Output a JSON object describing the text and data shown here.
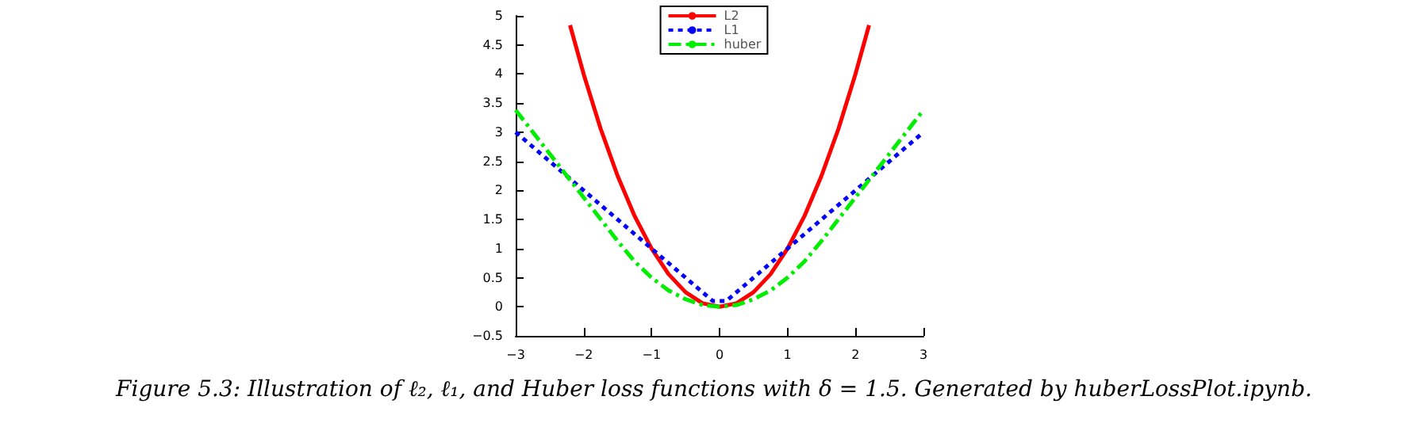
{
  "chart_data": {
    "type": "line",
    "x": [
      -2.2,
      -2,
      -1.75,
      -1.5,
      -1.25,
      -1,
      -0.75,
      -0.5,
      -0.25,
      0,
      0.25,
      0.5,
      0.75,
      1,
      1.25,
      1.5,
      1.75,
      2,
      2.2
    ],
    "series": [
      {
        "name": "L2",
        "color": "#ff0000",
        "line_style": "solid",
        "values": [
          4.84,
          4,
          3.06,
          2.25,
          1.56,
          1,
          0.56,
          0.25,
          0.06,
          0,
          0.06,
          0.25,
          0.56,
          1,
          1.56,
          2.25,
          3.06,
          4,
          4.84
        ]
      },
      {
        "name": "L1",
        "color": "#0000ff",
        "line_style": "dotted",
        "x": [
          -3,
          -0.1,
          0.1,
          3
        ],
        "values": [
          3,
          0.1,
          0.1,
          3
        ]
      },
      {
        "name": "huber",
        "color": "#00ee00",
        "line_style": "dashed",
        "x": [
          -3,
          -2.5,
          -2,
          -1.5,
          -1.25,
          -1,
          -0.75,
          -0.5,
          -0.25,
          0,
          0.25,
          0.5,
          0.75,
          1,
          1.25,
          1.5,
          2,
          2.5,
          3
        ],
        "values": [
          3.38,
          2.63,
          1.88,
          1.13,
          0.78,
          0.5,
          0.28,
          0.13,
          0.03,
          0,
          0.03,
          0.13,
          0.28,
          0.5,
          0.78,
          1.13,
          1.88,
          2.63,
          3.38
        ]
      }
    ],
    "xlim": [
      -3,
      3
    ],
    "xticks": [
      -3,
      -2,
      -1,
      0,
      1,
      2,
      3
    ],
    "ylim": [
      -0.5,
      5
    ],
    "yticks": [
      -0.5,
      0,
      0.5,
      1,
      1.5,
      2,
      2.5,
      3,
      3.5,
      4,
      4.5,
      5
    ],
    "grid": false,
    "legend": "top",
    "marker": "none",
    "annotations": [
      "Figure 5.3: Illustration of ℓ₂, ℓ₁, and Huber loss functions with δ = 1.5. Generated by huberLossPlot.ipynb."
    ]
  }
}
